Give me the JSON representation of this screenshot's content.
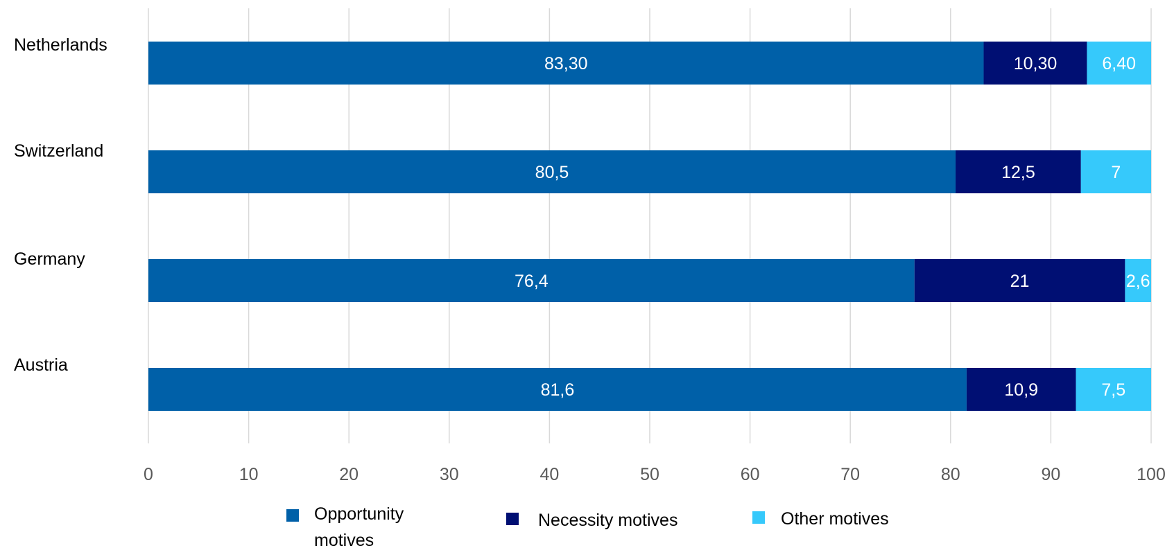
{
  "chart_data": {
    "type": "bar",
    "orientation": "horizontal",
    "stacked": true,
    "categories": [
      "Netherlands",
      "Switzerland",
      "Germany",
      "Austria"
    ],
    "series": [
      {
        "name": "Opportunity motives",
        "legend_lines": [
          "Opportunity",
          "motives"
        ],
        "color": "#0060a8",
        "values": [
          83.3,
          80.5,
          76.4,
          81.6
        ],
        "labels": [
          "83,30",
          "80,5",
          "76,4",
          "81,6"
        ]
      },
      {
        "name": "Necessity motives",
        "legend_lines": [
          "Necessity motives"
        ],
        "color": "#000f73",
        "values": [
          10.3,
          12.5,
          21,
          10.9
        ],
        "labels": [
          "10,30",
          "12,5",
          "21",
          "10,9"
        ]
      },
      {
        "name": "Other motives",
        "legend_lines": [
          "Other motives"
        ],
        "color": "#36c9fb",
        "values": [
          6.4,
          7,
          2.6,
          7.5
        ],
        "labels": [
          "6,40",
          "7",
          "2,6",
          "7,5"
        ]
      }
    ],
    "xlim": [
      0,
      100
    ],
    "xticks": [
      0,
      10,
      20,
      30,
      40,
      50,
      60,
      70,
      80,
      90,
      100
    ],
    "xtick_labels": [
      "0",
      "10",
      "20",
      "30",
      "40",
      "50",
      "60",
      "70",
      "80",
      "90",
      "100"
    ],
    "grid": "vertical",
    "grid_color": "#d9d9d9",
    "legend": "bottom",
    "title": "",
    "xlabel": "",
    "ylabel": ""
  }
}
